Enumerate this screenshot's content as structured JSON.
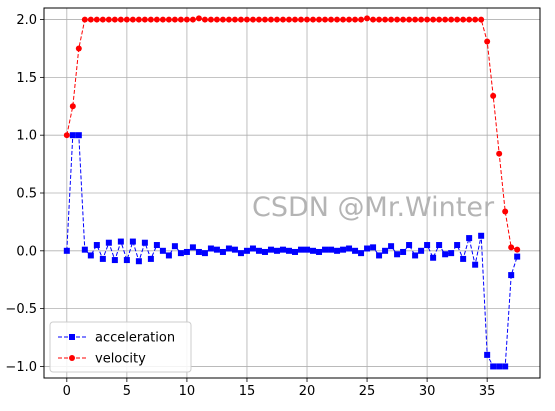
{
  "watermark": "CSDN @Mr.Winter",
  "chart_data": {
    "type": "line",
    "title": "",
    "xlabel": "",
    "ylabel": "",
    "xlim": [
      -1.9,
      39.4
    ],
    "ylim": [
      -1.1,
      2.1
    ],
    "xticks": [
      0,
      5,
      10,
      15,
      20,
      25,
      30,
      35
    ],
    "yticks": [
      -1.0,
      -0.5,
      0.0,
      0.5,
      1.0,
      1.5,
      2.0
    ],
    "xtick_labels": [
      "0",
      "5",
      "10",
      "15",
      "20",
      "25",
      "30",
      "35"
    ],
    "ytick_labels": [
      "−1.0",
      "−0.5",
      "0.0",
      "0.5",
      "1.0",
      "1.5",
      "2.0"
    ],
    "grid": true,
    "legend_position": "lower-left",
    "x": [
      0,
      0.5,
      1,
      1.5,
      2,
      2.5,
      3,
      3.5,
      4,
      4.5,
      5,
      5.5,
      6,
      6.5,
      7,
      7.5,
      8,
      8.5,
      9,
      9.5,
      10,
      10.5,
      11,
      11.5,
      12,
      12.5,
      13,
      13.5,
      14,
      14.5,
      15,
      15.5,
      16,
      16.5,
      17,
      17.5,
      18,
      18.5,
      19,
      19.5,
      20,
      20.5,
      21,
      21.5,
      22,
      22.5,
      23,
      23.5,
      24,
      24.5,
      25,
      25.5,
      26,
      26.5,
      27,
      27.5,
      28,
      28.5,
      29,
      29.5,
      30,
      30.5,
      31,
      31.5,
      32,
      32.5,
      33,
      33.5,
      34,
      34.5,
      35,
      35.5,
      36,
      36.5,
      37,
      37.5
    ],
    "series": [
      {
        "name": "acceleration",
        "color": "#0000ff",
        "linestyle": "dashed",
        "marker": "square",
        "values": [
          0.0,
          1.0,
          1.0,
          0.01,
          -0.04,
          0.05,
          -0.07,
          0.07,
          -0.08,
          0.08,
          -0.08,
          0.08,
          -0.09,
          0.07,
          -0.07,
          0.05,
          0.0,
          -0.04,
          0.04,
          -0.02,
          -0.01,
          0.03,
          -0.01,
          -0.02,
          0.02,
          0.01,
          -0.01,
          0.02,
          0.01,
          -0.02,
          0.0,
          0.02,
          0.0,
          -0.01,
          0.01,
          0.0,
          0.01,
          0.0,
          -0.01,
          0.01,
          0.01,
          0.0,
          -0.01,
          0.01,
          0.01,
          0.0,
          0.01,
          0.02,
          0.0,
          -0.02,
          0.02,
          0.03,
          -0.04,
          0.0,
          0.04,
          -0.03,
          -0.01,
          0.05,
          -0.04,
          0.0,
          0.05,
          -0.06,
          0.05,
          -0.03,
          -0.02,
          0.05,
          -0.07,
          0.11,
          -0.12,
          0.13,
          -0.9,
          -1.0,
          -1.0,
          -1.0,
          -0.21,
          -0.05
        ]
      },
      {
        "name": "velocity",
        "color": "#ff0000",
        "linestyle": "dashed",
        "marker": "circle",
        "values": [
          1.0,
          1.25,
          1.75,
          2.0,
          2.0,
          2.0,
          2.0,
          2.0,
          2.0,
          2.0,
          2.0,
          2.0,
          2.0,
          2.0,
          2.0,
          2.0,
          2.0,
          2.0,
          2.0,
          2.0,
          2.0,
          2.0,
          2.01,
          2.0,
          2.0,
          2.0,
          2.0,
          2.0,
          2.0,
          2.0,
          2.0,
          2.0,
          2.0,
          2.0,
          2.0,
          2.0,
          2.0,
          2.0,
          2.0,
          2.0,
          2.0,
          2.0,
          2.0,
          2.0,
          2.0,
          2.0,
          2.0,
          2.0,
          2.0,
          2.0,
          2.01,
          2.0,
          2.0,
          2.0,
          2.0,
          2.0,
          2.0,
          2.0,
          2.0,
          2.0,
          2.0,
          2.0,
          2.0,
          2.0,
          2.0,
          2.0,
          2.0,
          2.0,
          2.0,
          2.0,
          1.81,
          1.34,
          0.84,
          0.34,
          0.03,
          0.01
        ]
      }
    ]
  }
}
